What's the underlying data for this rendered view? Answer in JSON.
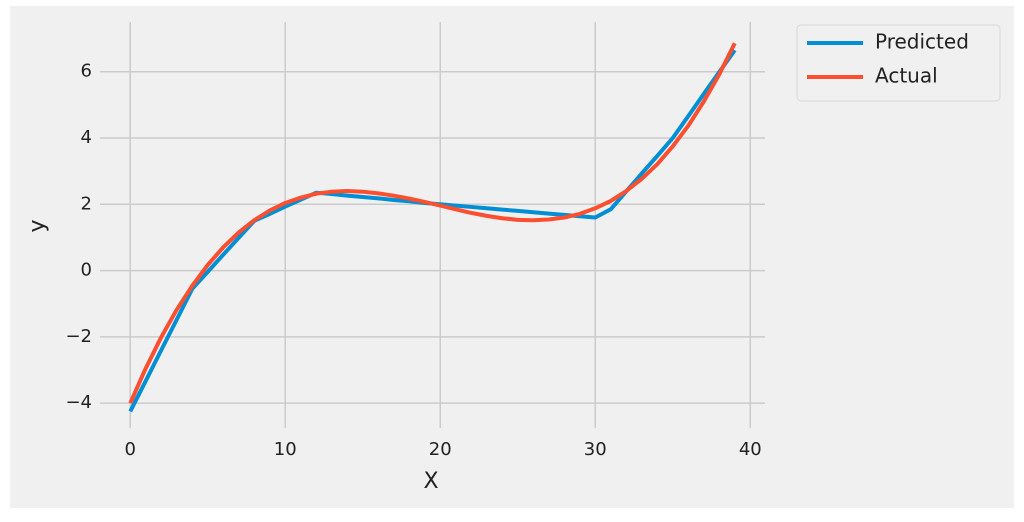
{
  "chart_data": {
    "type": "line",
    "xlabel": "X",
    "ylabel": "y",
    "x": [
      0,
      1,
      2,
      3,
      4,
      5,
      6,
      7,
      8,
      9,
      10,
      11,
      12,
      13,
      14,
      15,
      16,
      17,
      18,
      19,
      20,
      21,
      22,
      23,
      24,
      25,
      26,
      27,
      28,
      29,
      30,
      31,
      32,
      33,
      34,
      35,
      36,
      37,
      38,
      39
    ],
    "series": [
      {
        "name": "Predicted",
        "color": "#008fd5",
        "values": [
          -4.25,
          -3.33,
          -2.4,
          -1.48,
          -0.55,
          -0.04,
          0.48,
          0.99,
          1.5,
          1.71,
          1.93,
          2.14,
          2.35,
          2.31,
          2.26,
          2.22,
          2.18,
          2.13,
          2.09,
          2.04,
          2.0,
          1.96,
          1.92,
          1.88,
          1.84,
          1.8,
          1.76,
          1.72,
          1.68,
          1.64,
          1.6,
          1.85,
          2.39,
          2.93,
          3.46,
          4.0,
          4.66,
          5.33,
          5.99,
          6.65
        ]
      },
      {
        "name": "Actual",
        "color": "#fc4f30",
        "values": [
          -4.0,
          -2.95,
          -2.01,
          -1.18,
          -0.46,
          0.17,
          0.7,
          1.15,
          1.52,
          1.81,
          2.04,
          2.2,
          2.32,
          2.38,
          2.4,
          2.38,
          2.33,
          2.26,
          2.17,
          2.07,
          1.96,
          1.85,
          1.74,
          1.65,
          1.58,
          1.53,
          1.52,
          1.54,
          1.6,
          1.71,
          1.88,
          2.1,
          2.4,
          2.77,
          3.21,
          3.75,
          4.37,
          5.1,
          5.92,
          6.86
        ]
      }
    ],
    "xlim": [
      -1.95,
      40.95
    ],
    "xticks": [
      0,
      10,
      20,
      30,
      40
    ],
    "ylim": [
      -4.75,
      7.5
    ],
    "yticks": [
      {
        "value": -4,
        "label": "−4"
      },
      {
        "value": -2,
        "label": "−2"
      },
      0,
      2,
      4,
      6
    ],
    "grid": true,
    "legend": "outside upper right"
  }
}
